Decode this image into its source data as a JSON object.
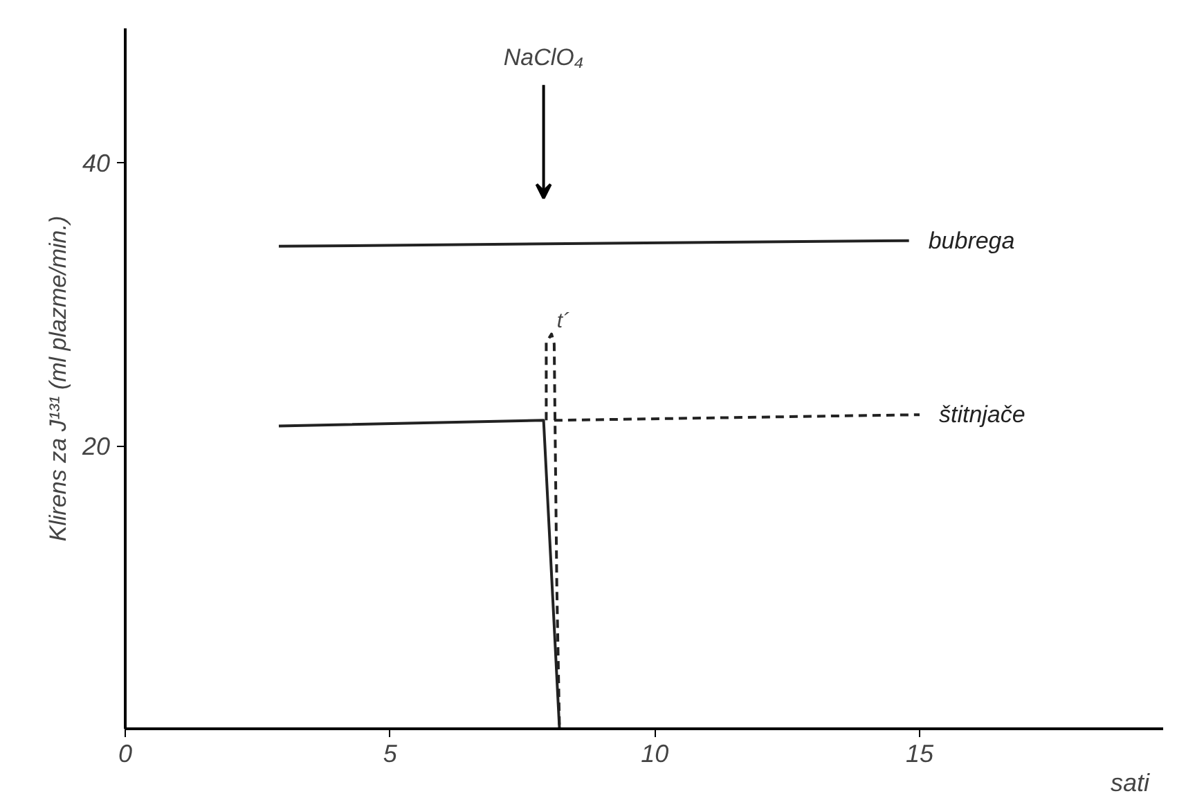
{
  "chart_data": {
    "type": "line",
    "xlabel": "sati",
    "ylabel": "Klirens za J¹³¹ (ml plazme/min.)",
    "xlim": [
      0,
      19.6
    ],
    "ylim": [
      0,
      49.5
    ],
    "xticks": [
      0,
      5,
      10,
      15
    ],
    "yticks": [
      20,
      40
    ],
    "grid": false,
    "series": [
      {
        "name": "bubrega",
        "color": "#222222",
        "x": [
          2.9,
          14.8
        ],
        "values": [
          34.1,
          34.5
        ],
        "line_style": "solid"
      },
      {
        "color": "#222222",
        "x": [
          2.9,
          7.9,
          8.2
        ],
        "values": [
          21.4,
          21.8,
          0
        ],
        "line_style": "solid"
      },
      {
        "color": "#222222",
        "x": [
          7.95,
          7.95,
          8.05,
          8.1,
          8.15,
          8.2
        ],
        "values": [
          21.8,
          27.3,
          27.9,
          27.2,
          10,
          0
        ],
        "line_style": "dashed"
      },
      {
        "name": "štitnjače",
        "color": "#222222",
        "x": [
          8.1,
          15.0
        ],
        "values": [
          21.8,
          22.2
        ],
        "line_style": "dashed"
      }
    ],
    "annotations": [
      "NaClO₄",
      {
        "text": "t´",
        "x": 8.15,
        "y": 28.0
      }
    ]
  }
}
